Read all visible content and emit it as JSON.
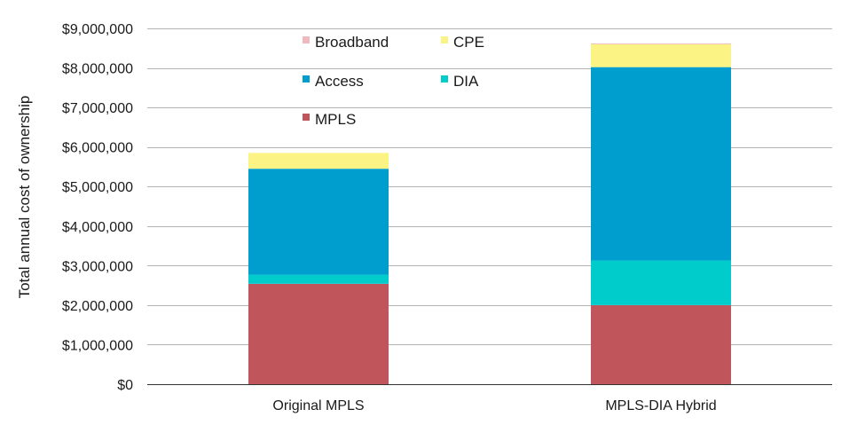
{
  "chart_data": {
    "type": "bar",
    "stacked": true,
    "categories": [
      "Original MPLS",
      "MPLS-DIA Hybrid"
    ],
    "series": [
      {
        "name": "MPLS",
        "color": "#c0565b",
        "values": [
          2540000,
          2000000
        ]
      },
      {
        "name": "DIA",
        "color": "#00cccc",
        "values": [
          230000,
          1130000
        ]
      },
      {
        "name": "Access",
        "color": "#009ecf",
        "values": [
          2680000,
          4890000
        ]
      },
      {
        "name": "CPE",
        "color": "#fbf383",
        "values": [
          400000,
          580000
        ]
      },
      {
        "name": "Broadband",
        "color": "#f0b9bd",
        "values": [
          0,
          20000
        ]
      }
    ],
    "legend": {
      "placement": "top-left",
      "order": [
        "Broadband",
        "CPE",
        "Access",
        "DIA",
        "MPLS"
      ]
    },
    "ylabel": "Total annual cost of ownership",
    "xlabel": "",
    "ylim": [
      0,
      9000000
    ],
    "yticks": [
      0,
      1000000,
      2000000,
      3000000,
      4000000,
      5000000,
      6000000,
      7000000,
      8000000,
      9000000
    ],
    "ytick_labels": [
      "$0",
      "$1,000,000",
      "$2,000,000",
      "$3,000,000",
      "$4,000,000",
      "$5,000,000",
      "$6,000,000",
      "$7,000,000",
      "$8,000,000",
      "$9,000,000"
    ],
    "grid": true,
    "gridline_color": "#b3b3b3"
  }
}
